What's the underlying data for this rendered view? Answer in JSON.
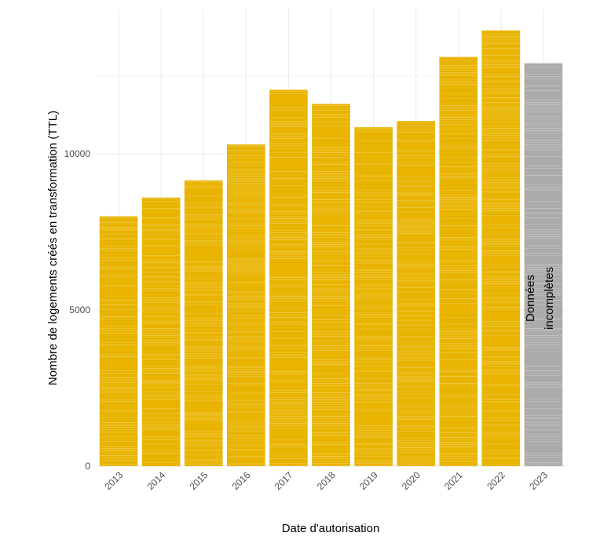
{
  "chart_data": {
    "type": "bar",
    "categories": [
      "2013",
      "2014",
      "2015",
      "2016",
      "2017",
      "2018",
      "2019",
      "2020",
      "2021",
      "2022",
      "2023"
    ],
    "values": [
      8000,
      8600,
      9150,
      10300,
      12050,
      11600,
      10850,
      11050,
      13100,
      13950,
      12900
    ],
    "bar_colors": [
      "#E8B400",
      "#E8B400",
      "#E8B400",
      "#E8B400",
      "#E8B400",
      "#E8B400",
      "#E8B400",
      "#E8B400",
      "#E8B400",
      "#E8B400",
      "#ABABAB"
    ],
    "xlabel": "Date d'autorisation",
    "ylabel": "Nombre  de logements créés en transformation  (TTL)",
    "ylim": [
      0,
      14500
    ],
    "yticks": [
      0,
      5000,
      10000
    ],
    "grid": true,
    "annotation": {
      "category": "2023",
      "lines": [
        "Données",
        "incomplètes"
      ]
    }
  },
  "colors": {
    "complete": "#E8B400",
    "incomplete": "#ABABAB",
    "grid": "#EBEBEB"
  }
}
